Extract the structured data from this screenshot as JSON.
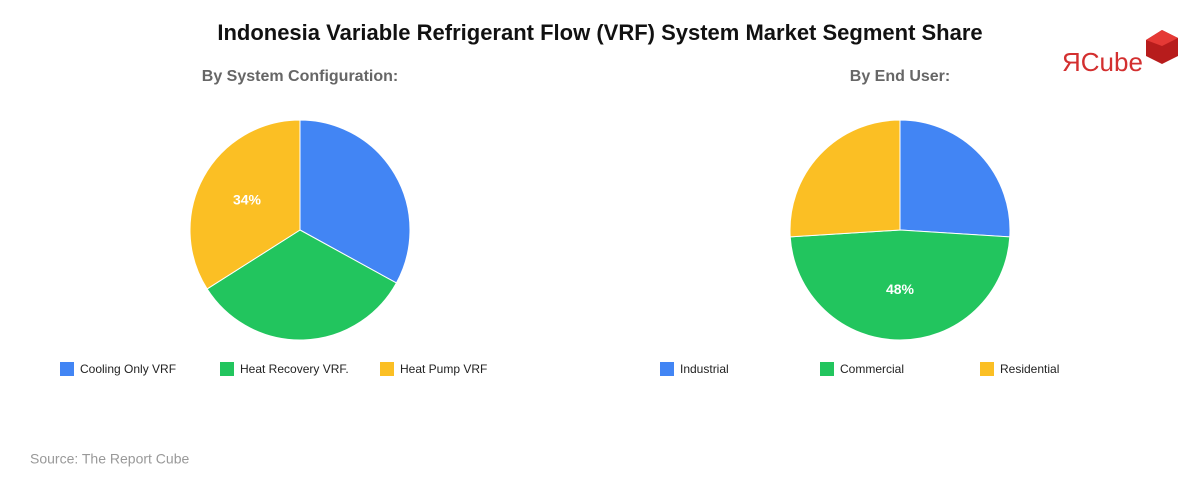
{
  "title": "Indonesia Variable Refrigerant Flow (VRF) System Market Segment Share",
  "logo": "ЯCube",
  "source": "Source: The Report Cube",
  "chart_data": [
    {
      "type": "pie",
      "subtitle": "By System Configuration:",
      "categories": [
        "Cooling Only VRF",
        "Heat Recovery VRF.",
        "Heat Pump VRF"
      ],
      "values": [
        33,
        33,
        34
      ],
      "value_labels": [
        null,
        null,
        "34%"
      ],
      "colors": [
        "#4285f4",
        "#22c55e",
        "#fbbf24"
      ]
    },
    {
      "type": "pie",
      "subtitle": "By End User:",
      "categories": [
        "Industrial",
        "Commercial",
        "Residential"
      ],
      "values": [
        26,
        48,
        26
      ],
      "value_labels": [
        null,
        "48%",
        null
      ],
      "colors": [
        "#4285f4",
        "#22c55e",
        "#fbbf24"
      ]
    }
  ]
}
